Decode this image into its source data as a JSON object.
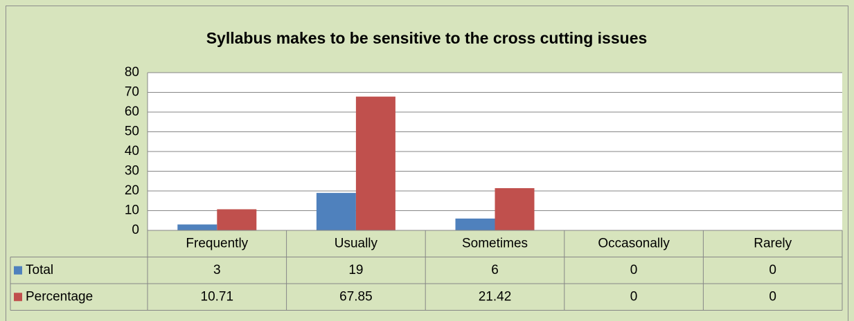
{
  "chart_data": {
    "type": "bar",
    "title": "Syllabus makes to be sensitive to the cross cutting issues",
    "categories": [
      "Frequently",
      "Usually",
      "Sometimes",
      "Occasonally",
      "Rarely"
    ],
    "series": [
      {
        "name": "Total",
        "color": "#4f81bd",
        "values": [
          3,
          19,
          6,
          0,
          0
        ]
      },
      {
        "name": "Percentage",
        "color": "#c0504d",
        "values": [
          10.71,
          67.85,
          21.42,
          0,
          0
        ]
      }
    ],
    "ylim": [
      0,
      80
    ],
    "yticks": [
      0,
      10,
      20,
      30,
      40,
      50,
      60,
      70,
      80
    ],
    "grid": true,
    "data_table": true
  }
}
